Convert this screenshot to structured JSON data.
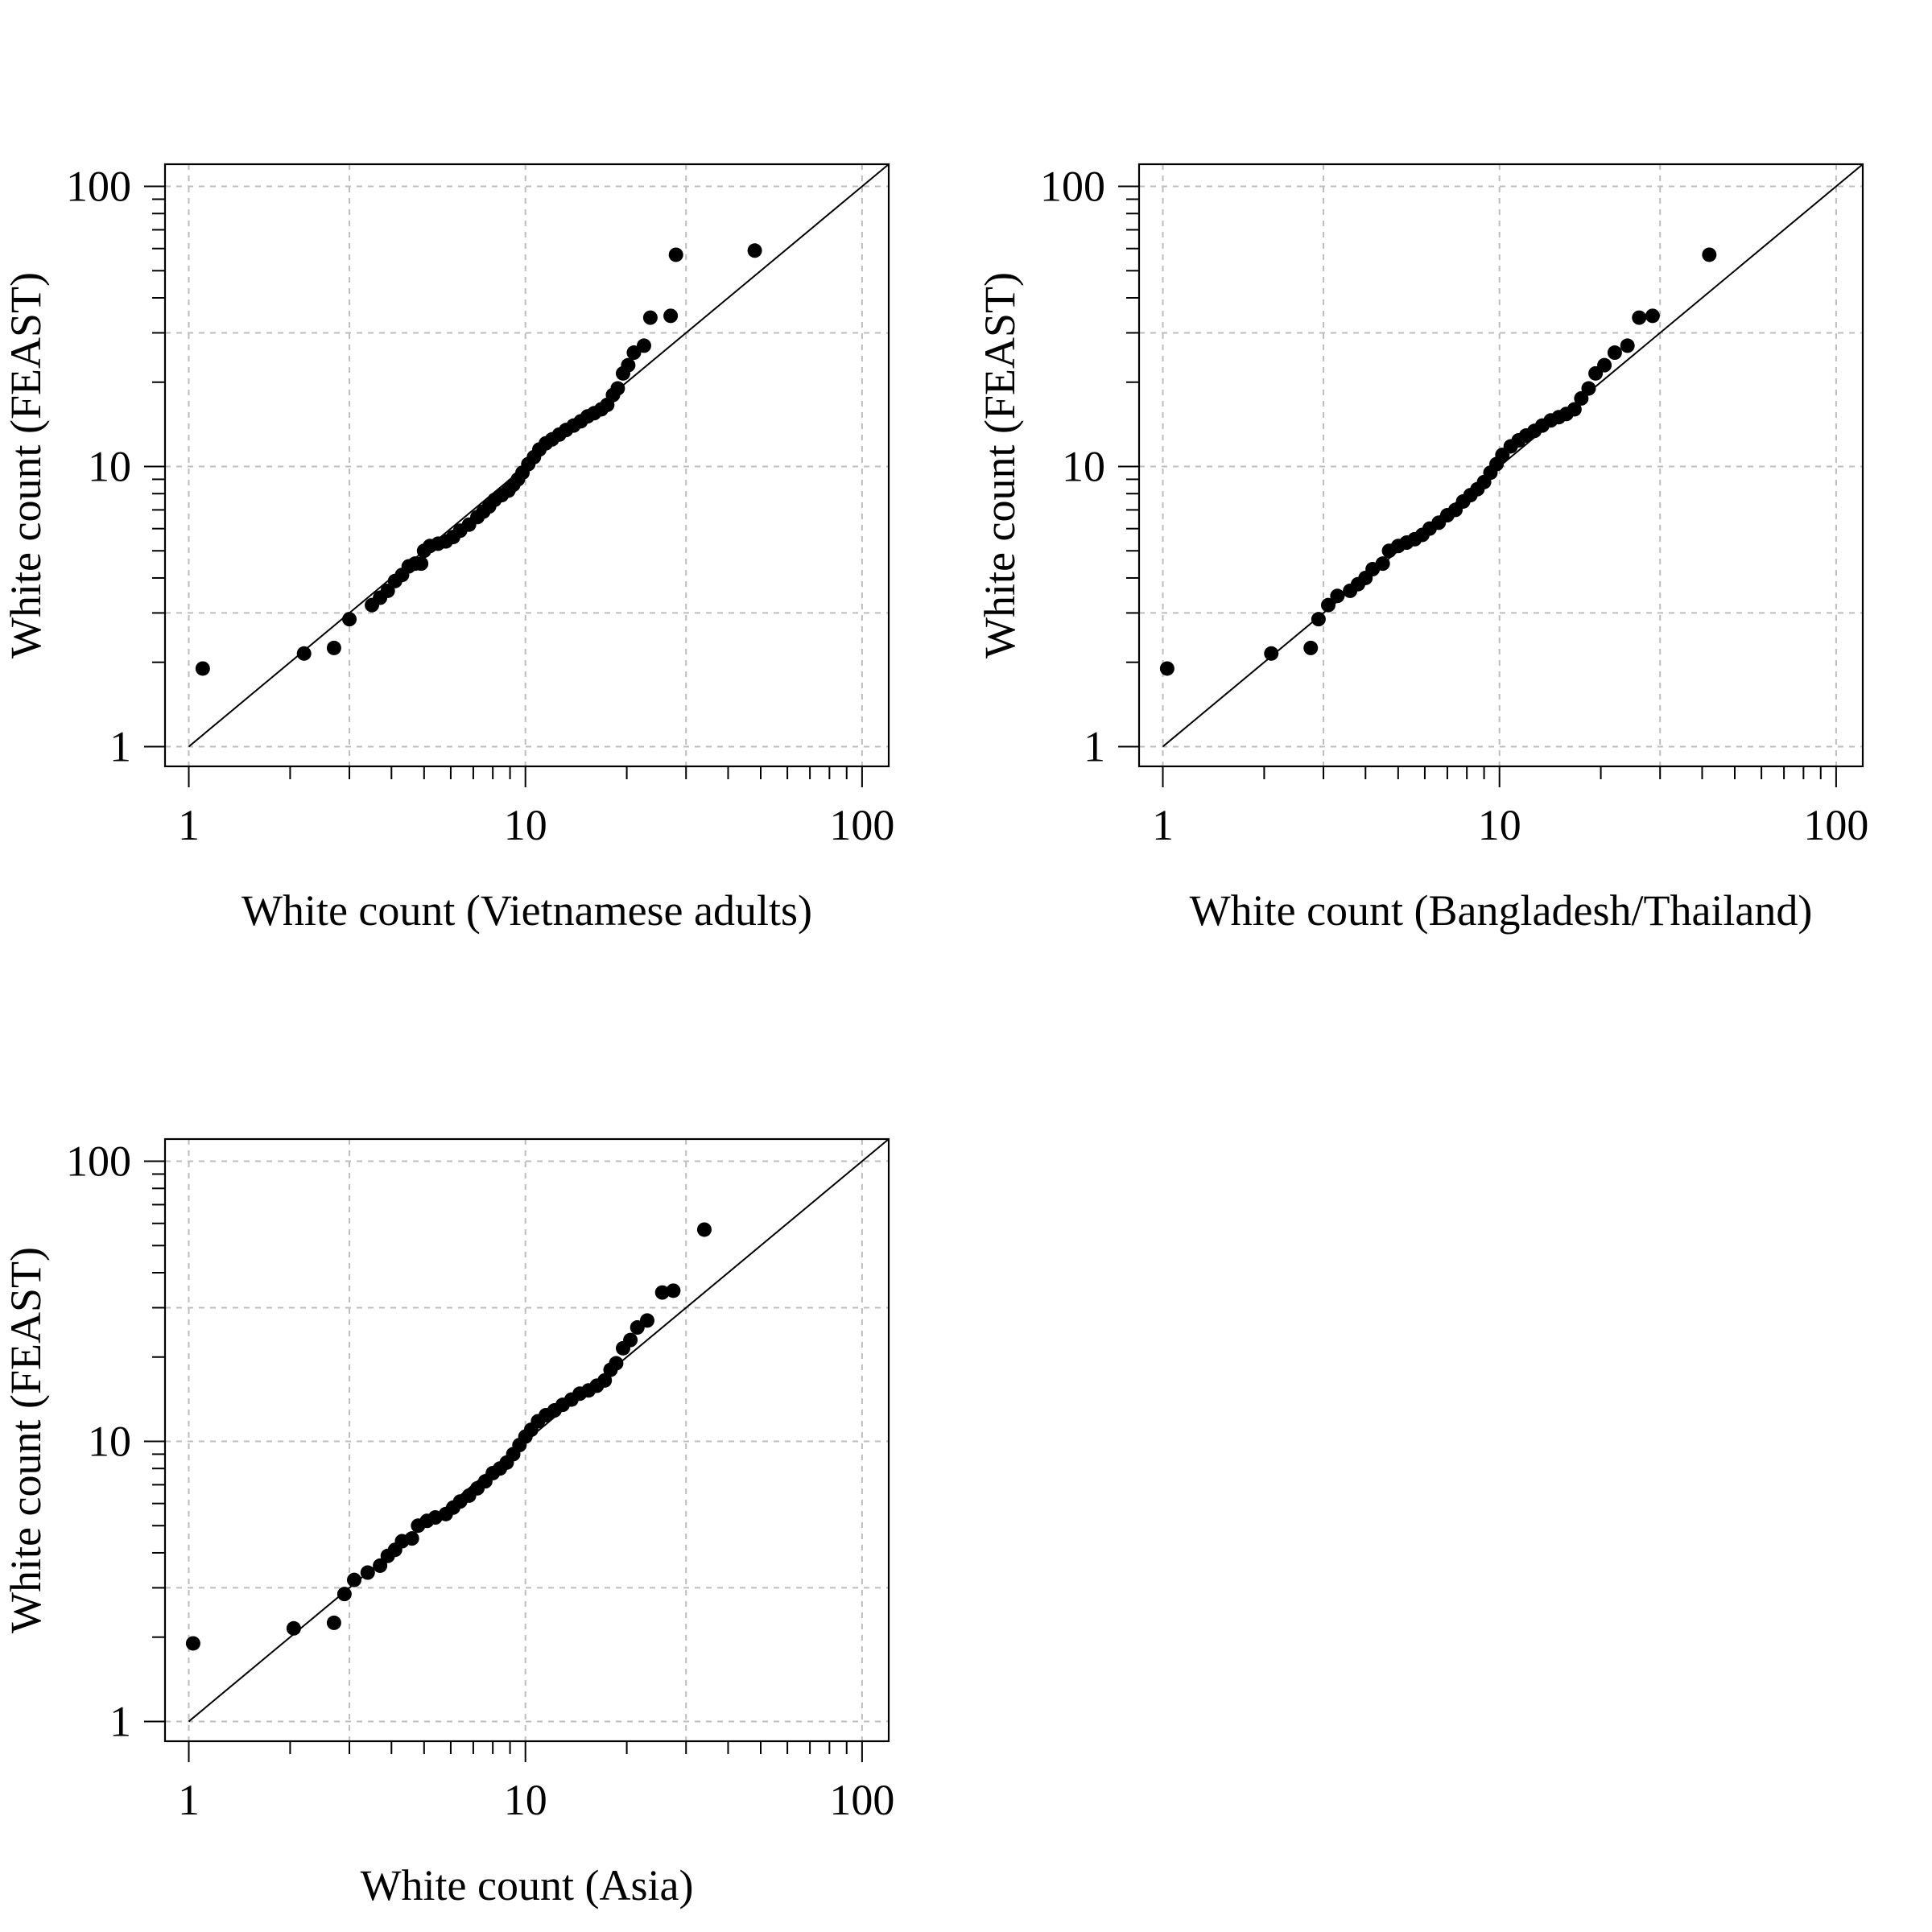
{
  "chart_data": [
    {
      "type": "scatter",
      "title": "",
      "xlabel": "White count (Vietnamese adults)",
      "ylabel": "White count (FEAST)",
      "x_scale": "log10",
      "y_scale": "log10",
      "xlim": [
        0.85,
        120
      ],
      "ylim": [
        0.85,
        120
      ],
      "x_ticks": [
        {
          "value": 1,
          "label": "1"
        },
        {
          "value": 10,
          "label": "10"
        },
        {
          "value": 100,
          "label": "100"
        }
      ],
      "y_ticks": [
        {
          "value": 1,
          "label": "1"
        },
        {
          "value": 10,
          "label": "10"
        },
        {
          "value": 100,
          "label": "100"
        }
      ],
      "grid": true,
      "reference_line": "y = x",
      "points": [
        [
          1.1,
          1.9
        ],
        [
          2.2,
          2.15
        ],
        [
          2.7,
          2.25
        ],
        [
          3.0,
          2.85
        ],
        [
          3.5,
          3.2
        ],
        [
          3.7,
          3.4
        ],
        [
          3.9,
          3.6
        ],
        [
          4.1,
          3.9
        ],
        [
          4.3,
          4.1
        ],
        [
          4.5,
          4.4
        ],
        [
          4.7,
          4.5
        ],
        [
          4.9,
          4.5
        ],
        [
          5.0,
          5.0
        ],
        [
          5.2,
          5.2
        ],
        [
          5.5,
          5.3
        ],
        [
          5.8,
          5.4
        ],
        [
          6.1,
          5.6
        ],
        [
          6.4,
          5.9
        ],
        [
          6.8,
          6.2
        ],
        [
          7.2,
          6.6
        ],
        [
          7.5,
          6.9
        ],
        [
          7.8,
          7.2
        ],
        [
          8.1,
          7.6
        ],
        [
          8.5,
          7.9
        ],
        [
          8.9,
          8.2
        ],
        [
          9.2,
          8.6
        ],
        [
          9.5,
          9.0
        ],
        [
          9.8,
          9.5
        ],
        [
          10.2,
          10.2
        ],
        [
          10.6,
          10.8
        ],
        [
          11.0,
          11.5
        ],
        [
          11.5,
          12.1
        ],
        [
          12.0,
          12.5
        ],
        [
          12.6,
          13.0
        ],
        [
          13.2,
          13.5
        ],
        [
          13.9,
          14.0
        ],
        [
          14.6,
          14.5
        ],
        [
          15.3,
          15.1
        ],
        [
          16.0,
          15.5
        ],
        [
          16.8,
          16.0
        ],
        [
          17.5,
          16.6
        ],
        [
          18.2,
          18.0
        ],
        [
          18.8,
          19.0
        ],
        [
          19.5,
          21.5
        ],
        [
          20.2,
          23.0
        ],
        [
          21.0,
          25.5
        ],
        [
          22.5,
          27.0
        ],
        [
          23.5,
          34.0
        ],
        [
          27.0,
          34.5
        ],
        [
          28.0,
          57.0
        ],
        [
          48.0,
          59.0
        ]
      ]
    },
    {
      "type": "scatter",
      "title": "",
      "xlabel": "White count (Bangladesh/Thailand)",
      "ylabel": "White count (FEAST)",
      "x_scale": "log10",
      "y_scale": "log10",
      "xlim": [
        0.85,
        120
      ],
      "ylim": [
        0.85,
        120
      ],
      "x_ticks": [
        {
          "value": 1,
          "label": "1"
        },
        {
          "value": 10,
          "label": "10"
        },
        {
          "value": 100,
          "label": "100"
        }
      ],
      "y_ticks": [
        {
          "value": 1,
          "label": "1"
        },
        {
          "value": 10,
          "label": "10"
        },
        {
          "value": 100,
          "label": "100"
        }
      ],
      "grid": true,
      "reference_line": "y = x",
      "points": [
        [
          1.03,
          1.9
        ],
        [
          2.1,
          2.15
        ],
        [
          2.75,
          2.25
        ],
        [
          2.9,
          2.85
        ],
        [
          3.1,
          3.2
        ],
        [
          3.3,
          3.45
        ],
        [
          3.6,
          3.6
        ],
        [
          3.8,
          3.8
        ],
        [
          4.0,
          4.0
        ],
        [
          4.2,
          4.3
        ],
        [
          4.5,
          4.5
        ],
        [
          4.7,
          5.0
        ],
        [
          5.0,
          5.2
        ],
        [
          5.3,
          5.35
        ],
        [
          5.6,
          5.5
        ],
        [
          5.9,
          5.7
        ],
        [
          6.2,
          6.0
        ],
        [
          6.6,
          6.3
        ],
        [
          7.0,
          6.7
        ],
        [
          7.4,
          7.0
        ],
        [
          7.8,
          7.5
        ],
        [
          8.2,
          7.9
        ],
        [
          8.6,
          8.3
        ],
        [
          9.0,
          8.8
        ],
        [
          9.4,
          9.5
        ],
        [
          9.8,
          10.2
        ],
        [
          10.2,
          11.0
        ],
        [
          10.8,
          11.8
        ],
        [
          11.4,
          12.4
        ],
        [
          12.0,
          12.9
        ],
        [
          12.7,
          13.4
        ],
        [
          13.4,
          14.0
        ],
        [
          14.2,
          14.6
        ],
        [
          15.0,
          15.0
        ],
        [
          15.8,
          15.4
        ],
        [
          16.7,
          16.0
        ],
        [
          17.5,
          17.5
        ],
        [
          18.4,
          19.0
        ],
        [
          19.3,
          21.5
        ],
        [
          20.5,
          23.0
        ],
        [
          22.0,
          25.5
        ],
        [
          24.0,
          27.0
        ],
        [
          26.0,
          34.0
        ],
        [
          28.5,
          34.5
        ],
        [
          42.0,
          57.0
        ]
      ]
    },
    {
      "type": "scatter",
      "title": "",
      "xlabel": "White count (Asia)",
      "ylabel": "White count (FEAST)",
      "x_scale": "log10",
      "y_scale": "log10",
      "xlim": [
        0.85,
        120
      ],
      "ylim": [
        0.85,
        120
      ],
      "x_ticks": [
        {
          "value": 1,
          "label": "1"
        },
        {
          "value": 10,
          "label": "10"
        },
        {
          "value": 100,
          "label": "100"
        }
      ],
      "y_ticks": [
        {
          "value": 1,
          "label": "1"
        },
        {
          "value": 10,
          "label": "10"
        },
        {
          "value": 100,
          "label": "100"
        }
      ],
      "grid": true,
      "reference_line": "y = x",
      "points": [
        [
          1.03,
          1.9
        ],
        [
          2.05,
          2.15
        ],
        [
          2.7,
          2.25
        ],
        [
          2.9,
          2.85
        ],
        [
          3.1,
          3.2
        ],
        [
          3.4,
          3.4
        ],
        [
          3.7,
          3.6
        ],
        [
          3.9,
          3.9
        ],
        [
          4.1,
          4.1
        ],
        [
          4.3,
          4.4
        ],
        [
          4.6,
          4.5
        ],
        [
          4.8,
          5.0
        ],
        [
          5.1,
          5.2
        ],
        [
          5.4,
          5.35
        ],
        [
          5.8,
          5.5
        ],
        [
          6.1,
          5.8
        ],
        [
          6.4,
          6.1
        ],
        [
          6.8,
          6.4
        ],
        [
          7.2,
          6.8
        ],
        [
          7.6,
          7.2
        ],
        [
          8.0,
          7.7
        ],
        [
          8.4,
          8.0
        ],
        [
          8.8,
          8.4
        ],
        [
          9.2,
          9.0
        ],
        [
          9.6,
          9.7
        ],
        [
          10.0,
          10.4
        ],
        [
          10.4,
          11.0
        ],
        [
          10.9,
          11.8
        ],
        [
          11.5,
          12.4
        ],
        [
          12.2,
          12.9
        ],
        [
          12.9,
          13.5
        ],
        [
          13.7,
          14.1
        ],
        [
          14.5,
          14.8
        ],
        [
          15.4,
          15.2
        ],
        [
          16.3,
          15.8
        ],
        [
          17.2,
          16.5
        ],
        [
          17.9,
          18.0
        ],
        [
          18.6,
          19.0
        ],
        [
          19.5,
          21.5
        ],
        [
          20.5,
          23.0
        ],
        [
          21.5,
          25.5
        ],
        [
          23.0,
          27.0
        ],
        [
          25.5,
          34.0
        ],
        [
          27.5,
          34.5
        ],
        [
          34.0,
          57.0
        ]
      ]
    }
  ]
}
